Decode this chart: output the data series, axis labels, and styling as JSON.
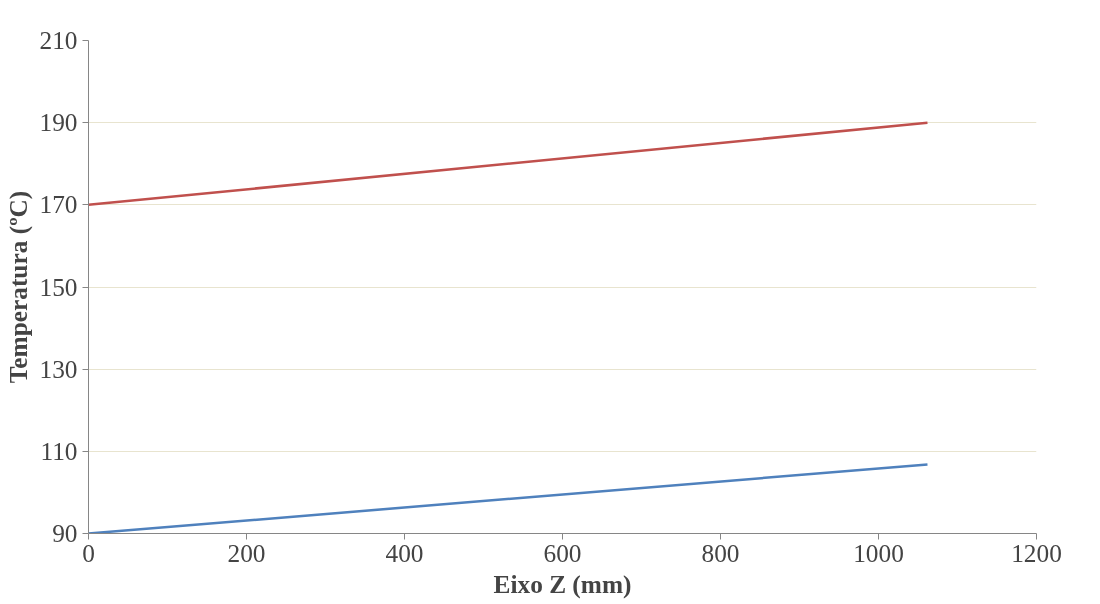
{
  "chart_data": {
    "type": "line",
    "xlabel": "Eixo Z (mm)",
    "ylabel": "Temperatura (ºC)",
    "xlim": [
      0,
      1200
    ],
    "xticks": [
      0,
      200,
      400,
      600,
      800,
      1000,
      1200
    ],
    "ylim": [
      90,
      210
    ],
    "yticks": [
      90,
      110,
      130,
      150,
      170,
      190,
      210
    ],
    "grid": "y",
    "marker": "none",
    "line_style": "solid",
    "x": [
      0,
      1062
    ],
    "series": [
      {
        "color": "#c0504d",
        "values": [
          170,
          190
        ]
      },
      {
        "color": "#4f81bd",
        "values": [
          90,
          106.8
        ]
      }
    ]
  }
}
